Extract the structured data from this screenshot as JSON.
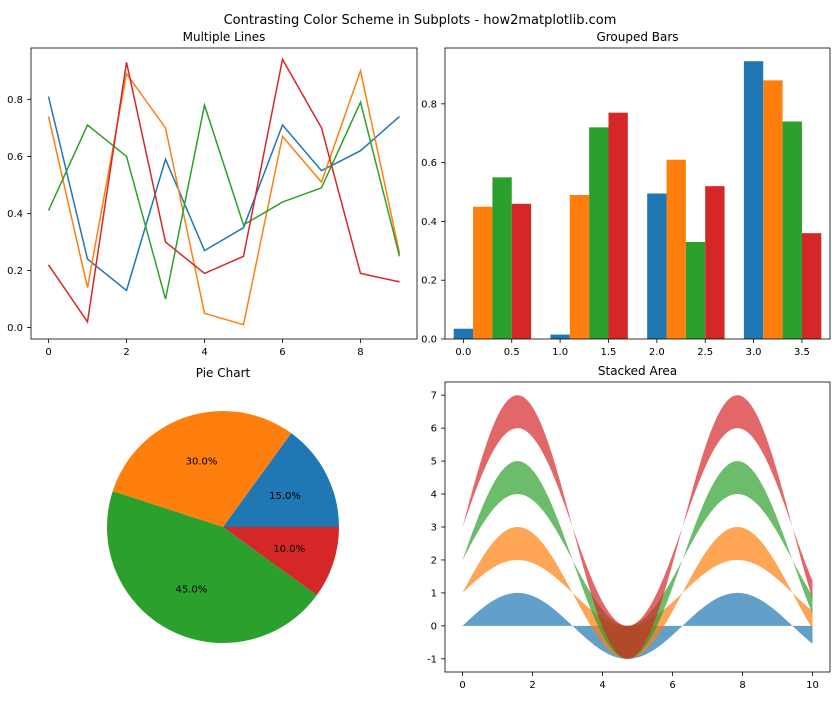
{
  "figure": {
    "suptitle": "Contrasting Color Scheme in Subplots - how2matplotlib.com"
  },
  "colors": {
    "blue": "#1f77b4",
    "orange": "#ff7f0e",
    "green": "#2ca02c",
    "red": "#d62728"
  },
  "chart_data": [
    {
      "type": "line",
      "title": "Multiple Lines",
      "x": [
        0,
        1,
        2,
        3,
        4,
        5,
        6,
        7,
        8,
        9
      ],
      "xlim": [
        -0.45,
        9.45
      ],
      "ylim": [
        -0.04,
        0.98
      ],
      "xticks": [
        0,
        2,
        4,
        6,
        8
      ],
      "yticks": [
        0.0,
        0.2,
        0.4,
        0.6,
        0.8
      ],
      "series": [
        {
          "color": "#1f77b4",
          "values": [
            0.81,
            0.24,
            0.13,
            0.59,
            0.27,
            0.35,
            0.71,
            0.55,
            0.62,
            0.74
          ]
        },
        {
          "color": "#ff7f0e",
          "values": [
            0.74,
            0.14,
            0.89,
            0.7,
            0.05,
            0.01,
            0.67,
            0.51,
            0.9,
            0.26
          ]
        },
        {
          "color": "#2ca02c",
          "values": [
            0.41,
            0.71,
            0.6,
            0.1,
            0.78,
            0.36,
            0.44,
            0.49,
            0.79,
            0.25
          ]
        },
        {
          "color": "#d62728",
          "values": [
            0.22,
            0.02,
            0.93,
            0.3,
            0.19,
            0.25,
            0.94,
            0.7,
            0.19,
            0.16
          ]
        }
      ]
    },
    {
      "type": "bar",
      "title": "Grouped Bars",
      "categories": [
        0,
        1,
        2,
        3
      ],
      "bar_width": 0.2,
      "xlim": [
        -0.19,
        3.79
      ],
      "ylim": [
        0,
        0.99
      ],
      "xticks": [
        0.0,
        0.5,
        1.0,
        1.5,
        2.0,
        2.5,
        3.0,
        3.5
      ],
      "yticks": [
        0.0,
        0.2,
        0.4,
        0.6,
        0.8
      ],
      "series": [
        {
          "color": "#1f77b4",
          "values": [
            0.035,
            0.015,
            0.495,
            0.945
          ]
        },
        {
          "color": "#ff7f0e",
          "values": [
            0.45,
            0.49,
            0.61,
            0.88
          ]
        },
        {
          "color": "#2ca02c",
          "values": [
            0.55,
            0.72,
            0.33,
            0.74
          ]
        },
        {
          "color": "#d62728",
          "values": [
            0.46,
            0.77,
            0.52,
            0.36
          ]
        }
      ]
    },
    {
      "type": "pie",
      "title": "Pie Chart",
      "values": [
        15,
        30,
        45,
        10
      ],
      "labels": [
        "15.0%",
        "30.0%",
        "45.0%",
        "10.0%"
      ],
      "colors": [
        "#1f77b4",
        "#ff7f0e",
        "#2ca02c",
        "#d62728"
      ],
      "startangle": 0
    },
    {
      "type": "area",
      "title": "Stacked Area",
      "function": "sin(x)",
      "x_range": [
        0,
        10
      ],
      "xlim": [
        -0.5,
        10.5
      ],
      "ylim": [
        -1.4,
        7.4
      ],
      "xticks": [
        0,
        2,
        4,
        6,
        8,
        10
      ],
      "yticks": [
        -1,
        0,
        1,
        2,
        3,
        4,
        5,
        6,
        7
      ],
      "series": [
        {
          "color": "#1f77b4",
          "lower": "0",
          "upper": "sin(x)"
        },
        {
          "color": "#ff7f0e",
          "lower": "sin(x)+1",
          "upper": "2*sin(x)+1"
        },
        {
          "color": "#2ca02c",
          "lower": "2*sin(x)+2",
          "upper": "3*sin(x)+2"
        },
        {
          "color": "#d62728",
          "lower": "3*sin(x)+3",
          "upper": "4*sin(x)+3"
        }
      ],
      "alpha": 0.7
    }
  ]
}
